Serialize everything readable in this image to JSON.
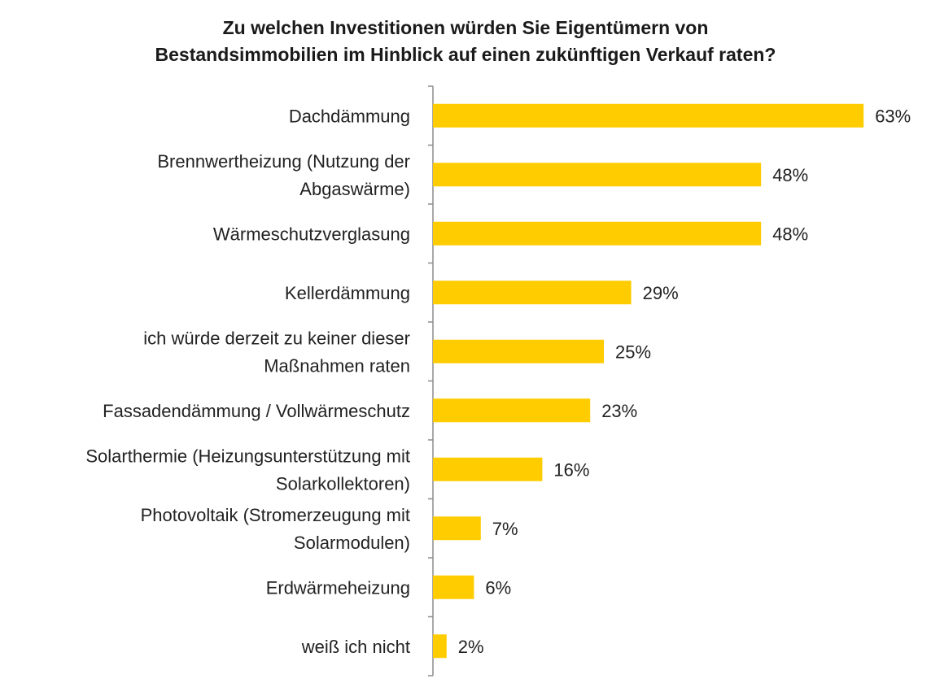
{
  "chart_data": {
    "type": "bar",
    "orientation": "horizontal",
    "title_lines": [
      "Zu welchen Investitionen würden Sie Eigentümern von",
      "Bestandsimmobilien im Hinblick auf einen zukünftigen Verkauf raten?"
    ],
    "categories": [
      [
        "Dachdämmung"
      ],
      [
        "Brennwertheizung (Nutzung der",
        "Abgaswärme)"
      ],
      [
        "Wärmeschutzverglasung"
      ],
      [
        "Kellerdämmung"
      ],
      [
        "ich würde derzeit zu keiner dieser",
        "Maßnahmen raten"
      ],
      [
        "Fassadendämmung / Vollwärmeschutz"
      ],
      [
        "Solarthermie (Heizungsunterstützung mit",
        "Solarkollektoren)"
      ],
      [
        "Photovoltaik (Stromerzeugung mit",
        "Solarmodulen)"
      ],
      [
        "Erdwärmeheizung"
      ],
      [
        "weiß ich nicht"
      ]
    ],
    "values": [
      63,
      48,
      48,
      29,
      25,
      23,
      16,
      7,
      6,
      2
    ],
    "value_labels": [
      "63%",
      "48%",
      "48%",
      "29%",
      "25%",
      "23%",
      "16%",
      "7%",
      "6%",
      "2%"
    ],
    "unit": "%",
    "bar_color": "#FFCC00",
    "grid": false,
    "legend": "none"
  }
}
